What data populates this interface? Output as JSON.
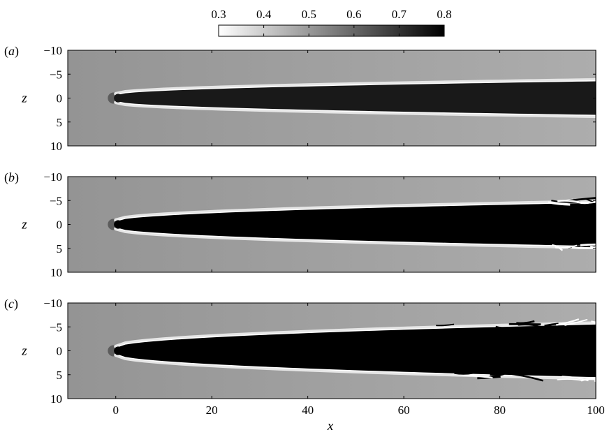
{
  "chart_data": {
    "type": "heatmap",
    "colorbar": {
      "ticks": [
        0.3,
        0.4,
        0.5,
        0.6,
        0.7,
        0.8
      ],
      "tick_labels": [
        "0.3",
        "0.4",
        "0.5",
        "0.6",
        "0.7",
        "0.8"
      ],
      "range": [
        0.3,
        0.8
      ],
      "colormap": [
        "#ffffff",
        "#000000"
      ]
    },
    "xlabel": "x",
    "xlim": [
      -10,
      100
    ],
    "xticks": [
      0,
      20,
      40,
      60,
      80,
      100
    ],
    "xtick_labels": [
      "0",
      "20",
      "40",
      "60",
      "80",
      "100"
    ],
    "ylabel": "z",
    "ylim": [
      -10,
      10
    ],
    "yticks": [
      -10,
      -5,
      0,
      5,
      10
    ],
    "ytick_labels": [
      "−10",
      "−5",
      "0",
      "5",
      "10"
    ],
    "background_value": 0.5,
    "panels": [
      {
        "label_open": "(",
        "label_letter": "a",
        "label_close": ")",
        "jet_core_value": 0.75,
        "jet_halfwidth_at_x100": 3.5,
        "edge_value": 0.3,
        "turbulent_from_x": null
      },
      {
        "label_open": "(",
        "label_letter": "b",
        "label_close": ")",
        "jet_core_value": 0.8,
        "jet_halfwidth_at_x100": 4.5,
        "edge_value": 0.3,
        "turbulent_from_x": 90
      },
      {
        "label_open": "(",
        "label_letter": "c",
        "label_close": ")",
        "jet_core_value": 0.8,
        "jet_halfwidth_at_x100": 5.5,
        "edge_value": 0.3,
        "turbulent_from_x": 65
      }
    ]
  }
}
